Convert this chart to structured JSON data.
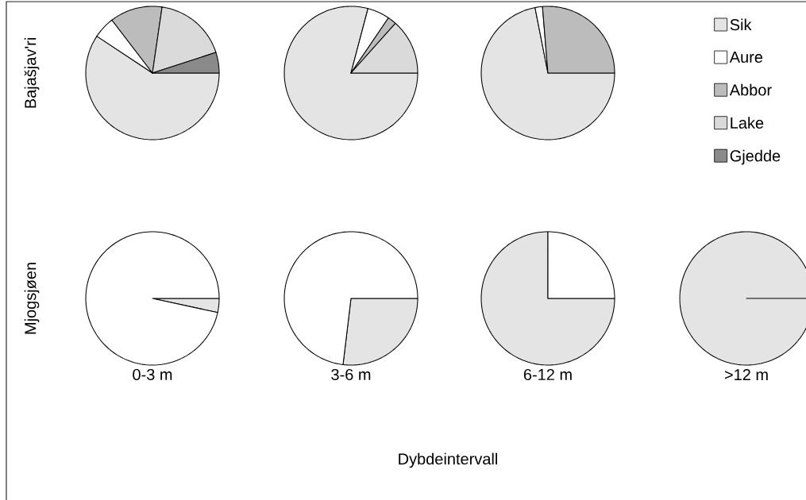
{
  "chart_data": [
    {
      "type": "pie",
      "ylabel": "Bajašjav'ri",
      "legend": "right",
      "categories": [
        "Sik",
        "Aure",
        "Abbor",
        "Lake",
        "Gjedde"
      ],
      "values": [
        59.3,
        5.3,
        12.7,
        17.7,
        5.0
      ],
      "colors": [
        "#e4e4e4",
        "#ffffff",
        "#bcbcbc",
        "#dadada",
        "#8a8a8a"
      ]
    },
    {
      "type": "pie",
      "categories": [
        null,
        null,
        null,
        null,
        null
      ],
      "values": [
        79.1,
        5.4,
        2.1,
        13.4,
        0
      ],
      "colors": [
        "#e4e4e4",
        "#ffffff",
        "#bcbcbc",
        "#dadada",
        "#8a8a8a"
      ]
    },
    {
      "type": "pie",
      "categories": [
        null,
        null,
        null,
        null,
        null
      ],
      "values": [
        71.9,
        1.8,
        26.3,
        0,
        0
      ],
      "colors": [
        "#e4e4e4",
        "#ffffff",
        "#bcbcbc",
        "#dadada",
        "#8a8a8a"
      ]
    },
    {
      "type": "pie",
      "ylabel": "Mjogsjøen",
      "xlabel": "0-3 m",
      "categories": [
        null,
        null,
        null,
        null,
        null
      ],
      "values": [
        3.4,
        96.6,
        0,
        0,
        0
      ],
      "colors": [
        "#e4e4e4",
        "#ffffff",
        "#bcbcbc",
        "#dadada",
        "#8a8a8a"
      ]
    },
    {
      "type": "pie",
      "xlabel": "3-6 m",
      "categories": [
        null,
        null,
        null,
        null,
        null
      ],
      "values": [
        26.9,
        73.1,
        0,
        0,
        0
      ],
      "colors": [
        "#e4e4e4",
        "#ffffff",
        "#bcbcbc",
        "#dadada",
        "#8a8a8a"
      ]
    },
    {
      "type": "pie",
      "xlabel": "6-12 m",
      "categories": [
        null,
        null,
        null,
        null,
        null
      ],
      "values": [
        75,
        25,
        0,
        0,
        0
      ],
      "colors": [
        "#e4e4e4",
        "#ffffff",
        "#bcbcbc",
        "#dadada",
        "#8a8a8a"
      ]
    },
    {
      "type": "pie",
      "xlabel": ">12 m",
      "categories": [
        null,
        null,
        null,
        null,
        null
      ],
      "values": [
        100,
        0,
        0,
        0,
        0
      ],
      "colors": [
        "#e4e4e4",
        "#ffffff",
        "#bcbcbc",
        "#dadada",
        "#8a8a8a"
      ]
    },
    {
      "type": "other",
      "annotations": [
        "Dybdeintervall"
      ]
    }
  ]
}
